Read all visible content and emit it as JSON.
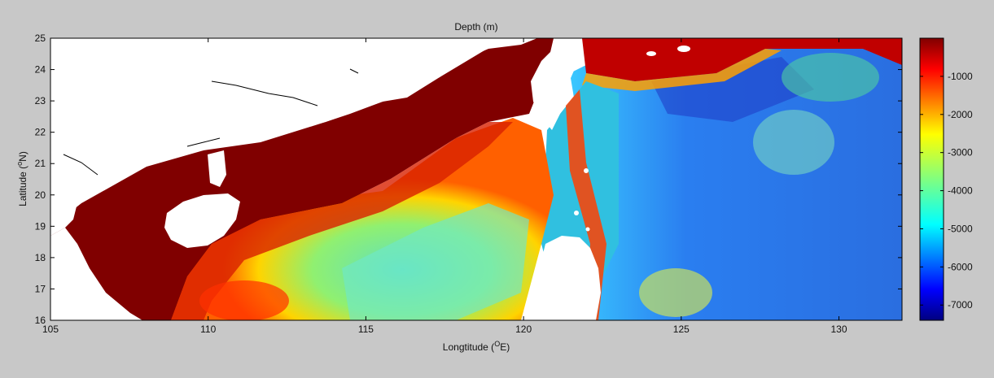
{
  "title": "Depth (m)",
  "xlabel_main": "Longtitude (",
  "xlabel_sup": "O",
  "xlabel_tail": "E)",
  "ylabel_main": "Latitude (",
  "ylabel_sup": "o",
  "ylabel_tail": "N)",
  "x_ticks": [
    "105",
    "110",
    "115",
    "120",
    "125",
    "130"
  ],
  "y_ticks": [
    "16",
    "17",
    "18",
    "19",
    "20",
    "21",
    "22",
    "23",
    "24",
    "25"
  ],
  "colorbar_ticks": [
    "-1000",
    "-2000",
    "-3000",
    "-4000",
    "-5000",
    "-6000",
    "-7000"
  ],
  "chart_data": {
    "type": "heatmap",
    "title": "Depth (m)",
    "xlabel": "Longtitude (OE)",
    "ylabel": "Latitude (oN)",
    "xlim": [
      105,
      132
    ],
    "ylim": [
      16,
      25
    ],
    "colorbar": {
      "min": -7400,
      "max": 0,
      "ticks": [
        -1000,
        -2000,
        -3000,
        -4000,
        -5000,
        -6000,
        -7000
      ],
      "colormap": "jet"
    },
    "colors": {
      "land": "#ffffff",
      "shelf": "#800000",
      "deep": "#1e63d6",
      "figure_background": "#c8c8c8"
    }
  }
}
